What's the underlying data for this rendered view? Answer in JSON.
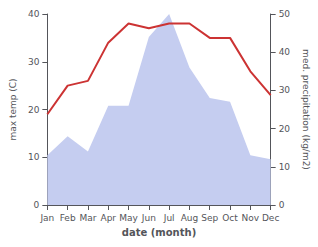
{
  "chart_data": {
    "type": "line",
    "xlabel": "date (month)",
    "ylabel": "max temp (C)",
    "y2label": "med. precipitation (kg/m2)",
    "categories": [
      "Jan",
      "Feb",
      "Mar",
      "Apr",
      "May",
      "Jun",
      "Jul",
      "Aug",
      "Sep",
      "Oct",
      "Nov",
      "Dec"
    ],
    "series": [
      {
        "type": "line",
        "color": "#cc3333",
        "values": [
          19,
          25,
          26,
          34,
          38,
          37,
          38,
          38,
          35,
          35,
          28,
          23
        ]
      },
      {
        "type": "area",
        "color": "#c5cdf0",
        "axis": "y2",
        "values": [
          13,
          18,
          14,
          26,
          26,
          44,
          50,
          36,
          28,
          27,
          13,
          12
        ]
      }
    ],
    "ylim": [
      0,
      40
    ],
    "yticks": [
      0,
      10,
      20,
      30,
      40
    ],
    "y2lim": [
      0,
      50
    ],
    "y2ticks": [
      0,
      10,
      20,
      30,
      40,
      50
    ],
    "grid": false
  }
}
